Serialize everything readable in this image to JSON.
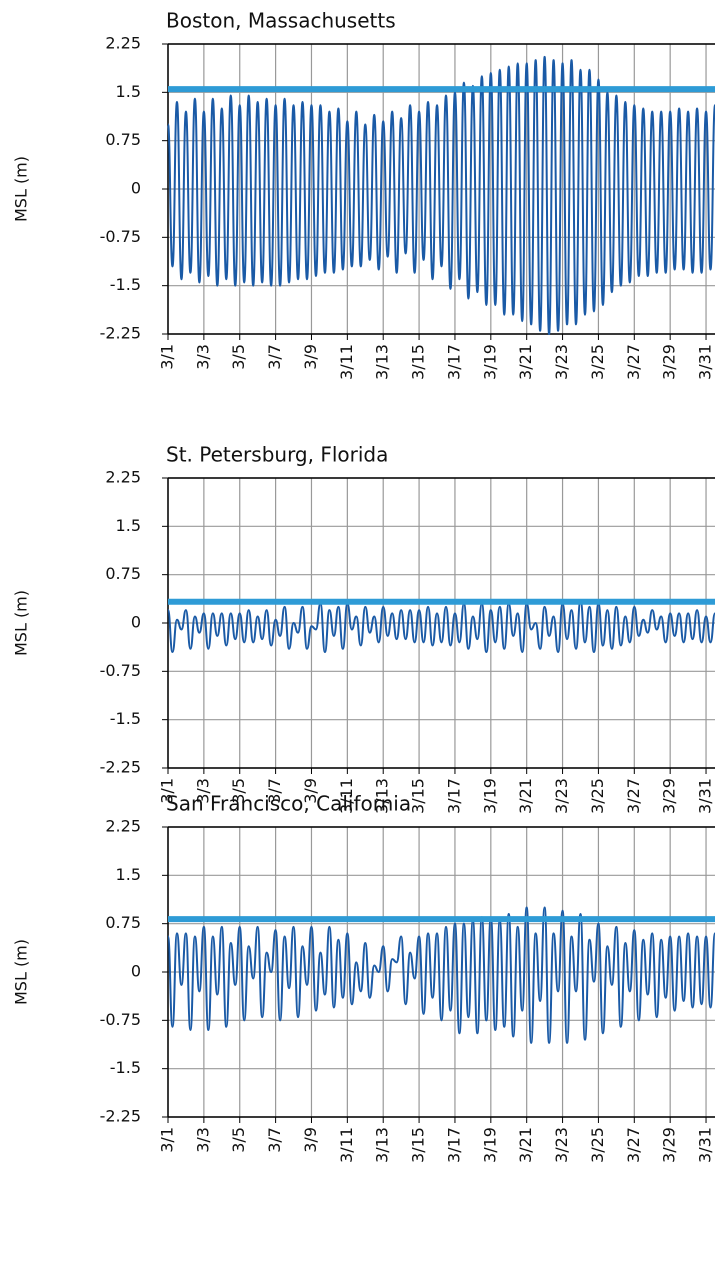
{
  "chart_data": [
    {
      "type": "line",
      "title": "Boston, Massachusetts",
      "y_label": "MSL (m)",
      "x": [
        1,
        1.25,
        1.5,
        1.75,
        2,
        2.25,
        2.5,
        2.75,
        3,
        3.25,
        3.5,
        3.75,
        4,
        4.25,
        4.5,
        4.75,
        5,
        5.25,
        5.5,
        5.75,
        6,
        6.25,
        6.5,
        6.75,
        7,
        7.25,
        7.5,
        7.75,
        8,
        8.25,
        8.5,
        8.75,
        9,
        9.25,
        9.5,
        9.75,
        10,
        10.25,
        10.5,
        10.75,
        11,
        11.25,
        11.5,
        11.75,
        12,
        12.25,
        12.5,
        12.75,
        13,
        13.25,
        13.5,
        13.75,
        14,
        14.25,
        14.5,
        14.75,
        15,
        15.25,
        15.5,
        15.75,
        16,
        16.25,
        16.5,
        16.75,
        17,
        17.25,
        17.5,
        17.75,
        18,
        18.25,
        18.5,
        18.75,
        19,
        19.25,
        19.5,
        19.75,
        20,
        20.25,
        20.5,
        20.75,
        21,
        21.25,
        21.5,
        21.75,
        22,
        22.25,
        22.5,
        22.75,
        23,
        23.25,
        23.5,
        23.75,
        24,
        24.25,
        24.5,
        24.75,
        25,
        25.25,
        25.5,
        25.75,
        26,
        26.25,
        26.5,
        26.75,
        27,
        27.25,
        27.5,
        27.75,
        28,
        28.25,
        28.5,
        28.75,
        29,
        29.25,
        29.5,
        29.75,
        30,
        30.25,
        30.5,
        30.75,
        31,
        31.25,
        31.5
      ],
      "values": [
        1.0,
        -1.2,
        1.35,
        -1.4,
        1.2,
        -1.3,
        1.4,
        -1.45,
        1.2,
        -1.35,
        1.4,
        -1.5,
        1.25,
        -1.4,
        1.45,
        -1.5,
        1.3,
        -1.45,
        1.45,
        -1.5,
        1.35,
        -1.45,
        1.4,
        -1.5,
        1.3,
        -1.5,
        1.4,
        -1.45,
        1.3,
        -1.4,
        1.35,
        -1.4,
        1.3,
        -1.35,
        1.3,
        -1.3,
        1.2,
        -1.3,
        1.25,
        -1.25,
        1.05,
        -1.2,
        1.2,
        -1.2,
        1.0,
        -1.1,
        1.15,
        -1.25,
        1.05,
        -1.05,
        1.2,
        -1.3,
        1.1,
        -1.0,
        1.3,
        -1.3,
        1.2,
        -1.1,
        1.35,
        -1.4,
        1.3,
        -1.2,
        1.45,
        -1.55,
        1.5,
        -1.4,
        1.65,
        -1.7,
        1.6,
        -1.6,
        1.75,
        -1.8,
        1.8,
        -1.8,
        1.85,
        -1.95,
        1.9,
        -1.95,
        1.95,
        -2.05,
        1.95,
        -2.1,
        2.0,
        -2.2,
        2.05,
        -2.25,
        2.0,
        -2.2,
        1.95,
        -2.1,
        2.0,
        -2.1,
        1.85,
        -1.95,
        1.85,
        -1.9,
        1.7,
        -1.8,
        1.5,
        -1.6,
        1.45,
        -1.5,
        1.35,
        -1.45,
        1.3,
        -1.35,
        1.25,
        -1.35,
        1.2,
        -1.3,
        1.2,
        -1.3,
        1.2,
        -1.25,
        1.25,
        -1.25,
        1.2,
        -1.3,
        1.25,
        -1.3,
        1.2,
        -1.25,
        1.3
      ],
      "color": "#1a5aa6",
      "reference_line": {
        "value": 1.55,
        "color": "#2e9bd6"
      },
      "xlim": [
        1,
        31.5
      ],
      "xticks": [
        {
          "value": 1,
          "label": "3/1"
        },
        {
          "value": 3,
          "label": "3/3"
        },
        {
          "value": 5,
          "label": "3/5"
        },
        {
          "value": 7,
          "label": "3/7"
        },
        {
          "value": 9,
          "label": "3/9"
        },
        {
          "value": 11,
          "label": "3/11"
        },
        {
          "value": 13,
          "label": "3/13"
        },
        {
          "value": 15,
          "label": "3/15"
        },
        {
          "value": 17,
          "label": "3/17"
        },
        {
          "value": 19,
          "label": "3/19"
        },
        {
          "value": 21,
          "label": "3/21"
        },
        {
          "value": 23,
          "label": "3/23"
        },
        {
          "value": 25,
          "label": "3/25"
        },
        {
          "value": 27,
          "label": "3/27"
        },
        {
          "value": 29,
          "label": "3/29"
        },
        {
          "value": 31,
          "label": "3/31"
        }
      ],
      "ylim": [
        -2.25,
        2.25
      ],
      "yticks": [
        -2.25,
        -1.5,
        -0.75,
        0,
        0.75,
        1.5,
        2.25
      ],
      "grid": true
    },
    {
      "type": "line",
      "title": "St. Petersburg, Florida",
      "y_label": "MSL (m)",
      "x": [
        1,
        1.25,
        1.5,
        1.75,
        2,
        2.25,
        2.5,
        2.75,
        3,
        3.25,
        3.5,
        3.75,
        4,
        4.25,
        4.5,
        4.75,
        5,
        5.25,
        5.5,
        5.75,
        6,
        6.25,
        6.5,
        6.75,
        7,
        7.25,
        7.5,
        7.75,
        8,
        8.25,
        8.5,
        8.75,
        9,
        9.25,
        9.5,
        9.75,
        10,
        10.25,
        10.5,
        10.75,
        11,
        11.25,
        11.5,
        11.75,
        12,
        12.25,
        12.5,
        12.75,
        13,
        13.25,
        13.5,
        13.75,
        14,
        14.25,
        14.5,
        14.75,
        15,
        15.25,
        15.5,
        15.75,
        16,
        16.25,
        16.5,
        16.75,
        17,
        17.25,
        17.5,
        17.75,
        18,
        18.25,
        18.5,
        18.75,
        19,
        19.25,
        19.5,
        19.75,
        20,
        20.25,
        20.5,
        20.75,
        21,
        21.25,
        21.5,
        21.75,
        22,
        22.25,
        22.5,
        22.75,
        23,
        23.25,
        23.5,
        23.75,
        24,
        24.25,
        24.5,
        24.75,
        25,
        25.25,
        25.5,
        25.75,
        26,
        26.25,
        26.5,
        26.75,
        27,
        27.25,
        27.5,
        27.75,
        28,
        28.25,
        28.5,
        28.75,
        29,
        29.25,
        29.5,
        29.75,
        30,
        30.25,
        30.5,
        30.75,
        31,
        31.25,
        31.5
      ],
      "values": [
        0.2,
        -0.45,
        0.05,
        -0.1,
        0.2,
        -0.4,
        0.1,
        -0.15,
        0.15,
        -0.4,
        0.15,
        -0.2,
        0.15,
        -0.35,
        0.15,
        -0.25,
        0.15,
        -0.3,
        0.2,
        -0.3,
        0.1,
        -0.25,
        0.2,
        -0.35,
        0.05,
        -0.2,
        0.25,
        -0.4,
        0.0,
        -0.15,
        0.25,
        -0.4,
        -0.05,
        -0.1,
        0.3,
        -0.45,
        0.2,
        -0.2,
        0.25,
        -0.4,
        0.3,
        -0.1,
        0.1,
        -0.35,
        0.25,
        -0.15,
        0.1,
        -0.3,
        0.25,
        -0.2,
        0.15,
        -0.25,
        0.2,
        -0.25,
        0.2,
        -0.3,
        0.2,
        -0.3,
        0.25,
        -0.35,
        0.15,
        -0.3,
        0.25,
        -0.35,
        0.15,
        -0.3,
        0.3,
        -0.4,
        0.1,
        -0.25,
        0.3,
        -0.45,
        0.2,
        -0.3,
        0.25,
        -0.4,
        0.3,
        -0.2,
        0.15,
        -0.45,
        0.3,
        -0.1,
        0.0,
        -0.4,
        0.25,
        -0.2,
        0.1,
        -0.45,
        0.3,
        -0.25,
        0.2,
        -0.4,
        0.35,
        -0.3,
        0.25,
        -0.45,
        0.3,
        -0.35,
        0.2,
        -0.4,
        0.25,
        -0.35,
        0.1,
        -0.3,
        0.25,
        -0.2,
        0.05,
        -0.15,
        0.2,
        -0.1,
        0.1,
        -0.3,
        0.15,
        -0.2,
        0.15,
        -0.3,
        0.15,
        -0.25,
        0.2,
        -0.3,
        0.1,
        -0.3,
        0.15
      ],
      "color": "#1a5aa6",
      "reference_line": {
        "value": 0.33,
        "color": "#2e9bd6"
      },
      "xlim": [
        1,
        31.5
      ],
      "xticks": [
        {
          "value": 1,
          "label": "3/1"
        },
        {
          "value": 3,
          "label": "3/3"
        },
        {
          "value": 5,
          "label": "3/5"
        },
        {
          "value": 7,
          "label": "3/7"
        },
        {
          "value": 9,
          "label": "3/9"
        },
        {
          "value": 11,
          "label": "3/11"
        },
        {
          "value": 13,
          "label": "3/13"
        },
        {
          "value": 15,
          "label": "3/15"
        },
        {
          "value": 17,
          "label": "3/17"
        },
        {
          "value": 19,
          "label": "3/19"
        },
        {
          "value": 21,
          "label": "3/21"
        },
        {
          "value": 23,
          "label": "3/23"
        },
        {
          "value": 25,
          "label": "3/25"
        },
        {
          "value": 27,
          "label": "3/27"
        },
        {
          "value": 29,
          "label": "3/29"
        },
        {
          "value": 31,
          "label": "3/31"
        }
      ],
      "ylim": [
        -2.25,
        2.25
      ],
      "yticks": [
        -2.25,
        -1.5,
        -0.75,
        0,
        0.75,
        1.5,
        2.25
      ],
      "grid": true
    },
    {
      "type": "line",
      "title": "San Francisco, California",
      "y_label": "MSL (m)",
      "x": [
        1,
        1.25,
        1.5,
        1.75,
        2,
        2.25,
        2.5,
        2.75,
        3,
        3.25,
        3.5,
        3.75,
        4,
        4.25,
        4.5,
        4.75,
        5,
        5.25,
        5.5,
        5.75,
        6,
        6.25,
        6.5,
        6.75,
        7,
        7.25,
        7.5,
        7.75,
        8,
        8.25,
        8.5,
        8.75,
        9,
        9.25,
        9.5,
        9.75,
        10,
        10.25,
        10.5,
        10.75,
        11,
        11.25,
        11.5,
        11.75,
        12,
        12.25,
        12.5,
        12.75,
        13,
        13.25,
        13.5,
        13.75,
        14,
        14.25,
        14.5,
        14.75,
        15,
        15.25,
        15.5,
        15.75,
        16,
        16.25,
        16.5,
        16.75,
        17,
        17.25,
        17.5,
        17.75,
        18,
        18.25,
        18.5,
        18.75,
        19,
        19.25,
        19.5,
        19.75,
        20,
        20.25,
        20.5,
        20.75,
        21,
        21.25,
        21.5,
        21.75,
        22,
        22.25,
        22.5,
        22.75,
        23,
        23.25,
        23.5,
        23.75,
        24,
        24.25,
        24.5,
        24.75,
        25,
        25.25,
        25.5,
        25.75,
        26,
        26.25,
        26.5,
        26.75,
        27,
        27.25,
        27.5,
        27.75,
        28,
        28.25,
        28.5,
        28.75,
        29,
        29.25,
        29.5,
        29.75,
        30,
        30.25,
        30.5,
        30.75,
        31,
        31.25,
        31.5
      ],
      "values": [
        0.55,
        -0.85,
        0.6,
        -0.2,
        0.6,
        -0.9,
        0.55,
        -0.3,
        0.7,
        -0.9,
        0.55,
        -0.35,
        0.7,
        -0.85,
        0.45,
        -0.2,
        0.7,
        -0.75,
        0.4,
        -0.1,
        0.7,
        -0.7,
        0.3,
        0.0,
        0.65,
        -0.75,
        0.55,
        -0.25,
        0.7,
        -0.7,
        0.4,
        -0.2,
        0.7,
        -0.6,
        0.3,
        -0.35,
        0.7,
        -0.55,
        0.5,
        -0.4,
        0.6,
        -0.5,
        0.15,
        -0.3,
        0.45,
        -0.4,
        0.1,
        0.0,
        0.4,
        -0.3,
        0.2,
        0.15,
        0.55,
        -0.5,
        0.3,
        -0.1,
        0.55,
        -0.65,
        0.6,
        -0.4,
        0.6,
        -0.75,
        0.7,
        -0.6,
        0.75,
        -0.95,
        0.75,
        -0.7,
        0.8,
        -0.95,
        0.85,
        -0.75,
        0.85,
        -0.9,
        0.8,
        -0.85,
        0.9,
        -1.0,
        0.7,
        -0.6,
        1.0,
        -1.1,
        0.6,
        -0.45,
        1.0,
        -1.1,
        0.6,
        -0.3,
        0.95,
        -1.1,
        0.55,
        -0.3,
        0.9,
        -1.05,
        0.5,
        -0.15,
        0.75,
        -0.95,
        0.4,
        -0.2,
        0.7,
        -0.85,
        0.45,
        -0.3,
        0.65,
        -0.75,
        0.5,
        -0.35,
        0.6,
        -0.7,
        0.5,
        -0.4,
        0.55,
        -0.6,
        0.55,
        -0.45,
        0.6,
        -0.55,
        0.55,
        -0.5,
        0.55,
        -0.55,
        0.6
      ],
      "color": "#1a5aa6",
      "reference_line": {
        "value": 0.82,
        "color": "#2e9bd6"
      },
      "xlim": [
        1,
        31.5
      ],
      "xticks": [
        {
          "value": 1,
          "label": "3/1"
        },
        {
          "value": 3,
          "label": "3/3"
        },
        {
          "value": 5,
          "label": "3/5"
        },
        {
          "value": 7,
          "label": "3/7"
        },
        {
          "value": 9,
          "label": "3/9"
        },
        {
          "value": 11,
          "label": "3/11"
        },
        {
          "value": 13,
          "label": "3/13"
        },
        {
          "value": 15,
          "label": "3/15"
        },
        {
          "value": 17,
          "label": "3/17"
        },
        {
          "value": 19,
          "label": "3/19"
        },
        {
          "value": 21,
          "label": "3/21"
        },
        {
          "value": 23,
          "label": "3/23"
        },
        {
          "value": 25,
          "label": "3/25"
        },
        {
          "value": 27,
          "label": "3/27"
        },
        {
          "value": 29,
          "label": "3/29"
        },
        {
          "value": 31,
          "label": "3/31"
        }
      ],
      "ylim": [
        -2.25,
        2.25
      ],
      "yticks": [
        -2.25,
        -1.5,
        -0.75,
        0,
        0.75,
        1.5,
        2.25
      ],
      "grid": true
    }
  ]
}
